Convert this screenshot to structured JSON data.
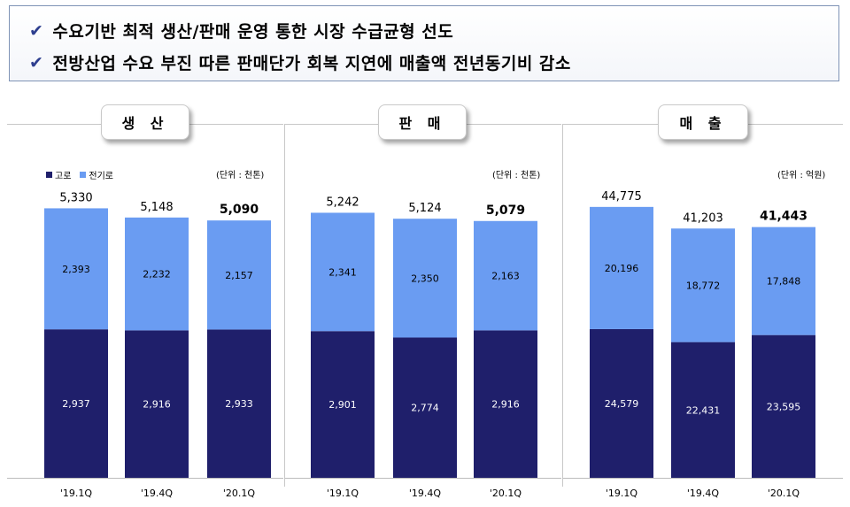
{
  "summary": {
    "items": [
      "수요기반 최적 생산/판매 운영 통한 시장 수급균형 선도",
      "전방산업 수요 부진 따른 판매단가 회복 지연에 매출액 전년동기비 감소"
    ]
  },
  "colors": {
    "blast_furnace": "#1f1f6b",
    "electric_furnace": "#6a9cf2",
    "total_label": "#000000"
  },
  "legend": {
    "blast_furnace": "고로",
    "electric_furnace": "전기로"
  },
  "chart_data": [
    {
      "type": "bar",
      "title": "생 산",
      "unit": "(단위 : 천톤)",
      "categories": [
        "'19.1Q",
        "'19.4Q",
        "'20.1Q"
      ],
      "series": [
        {
          "name": "고로",
          "values": [
            2937,
            2916,
            2933
          ]
        },
        {
          "name": "전기로",
          "values": [
            2393,
            2232,
            2157
          ]
        }
      ],
      "totals": [
        5330,
        5148,
        5090
      ],
      "ylim": [
        0,
        5600
      ],
      "grid": false
    },
    {
      "type": "bar",
      "title": "판 매",
      "unit": "(단위 : 천톤)",
      "categories": [
        "'19.1Q",
        "'19.4Q",
        "'20.1Q"
      ],
      "series": [
        {
          "name": "고로",
          "values": [
            2901,
            2774,
            2916
          ]
        },
        {
          "name": "전기로",
          "values": [
            2341,
            2350,
            2163
          ]
        }
      ],
      "totals": [
        5242,
        5124,
        5079
      ],
      "ylim": [
        0,
        5600
      ],
      "grid": false
    },
    {
      "type": "bar",
      "title": "매 출",
      "unit": "(단위 : 억원)",
      "categories": [
        "'19.1Q",
        "'19.4Q",
        "'20.1Q"
      ],
      "series": [
        {
          "name": "고로",
          "values": [
            24579,
            22431,
            23595
          ]
        },
        {
          "name": "전기로",
          "values": [
            20196,
            18772,
            17848
          ]
        }
      ],
      "totals": [
        44775,
        41203,
        41443
      ],
      "ylim": [
        0,
        46800
      ],
      "grid": false
    }
  ]
}
